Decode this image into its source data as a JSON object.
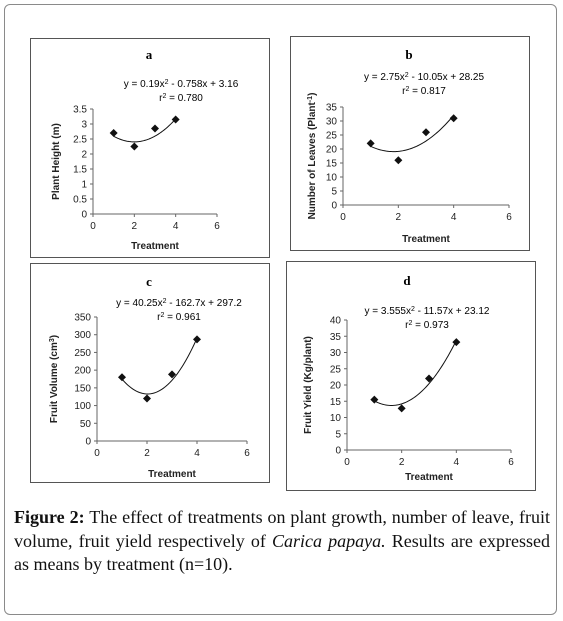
{
  "chart_data": [
    {
      "id": "a",
      "type": "scatter",
      "panel_label": "a",
      "equation": "y = 0.19x² - 0.758x + 3.16",
      "r2": "r² = 0.780",
      "xlabel": "Treatment",
      "ylabel": "Plant Height (m)",
      "xlim": [
        0,
        6
      ],
      "xticks": [
        0,
        2,
        4,
        6
      ],
      "ylim": [
        0,
        3.5
      ],
      "yticks": [
        0,
        0.5,
        1,
        1.5,
        2,
        2.5,
        3,
        3.5
      ],
      "points": [
        {
          "x": 1,
          "y": 2.7
        },
        {
          "x": 2,
          "y": 2.25
        },
        {
          "x": 3,
          "y": 2.85
        },
        {
          "x": 4,
          "y": 3.15
        }
      ],
      "fit": [
        0.19,
        -0.758,
        3.16
      ]
    },
    {
      "id": "b",
      "type": "scatter",
      "panel_label": "b",
      "equation": "y = 2.75x² - 10.05x + 28.25",
      "r2": "r² = 0.817",
      "xlabel": "Treatment",
      "ylabel": "Number of Leaves (Plant⁻¹)",
      "xlim": [
        0,
        6
      ],
      "xticks": [
        0,
        2,
        4,
        6
      ],
      "ylim": [
        0,
        35
      ],
      "yticks": [
        0,
        5,
        10,
        15,
        20,
        25,
        30,
        35
      ],
      "points": [
        {
          "x": 1,
          "y": 22
        },
        {
          "x": 2,
          "y": 16
        },
        {
          "x": 3,
          "y": 26
        },
        {
          "x": 4,
          "y": 31
        }
      ],
      "fit": [
        2.75,
        -10.05,
        28.25
      ]
    },
    {
      "id": "c",
      "type": "scatter",
      "panel_label": "c",
      "equation": "y = 40.25x² - 162.7x + 297.2",
      "r2": "r² = 0.961",
      "xlabel": "Treatment",
      "ylabel": "Fruit Volume (cm³)",
      "xlim": [
        0,
        6
      ],
      "xticks": [
        0,
        2,
        4,
        6
      ],
      "ylim": [
        0,
        350
      ],
      "yticks": [
        0,
        50,
        100,
        150,
        200,
        250,
        300,
        350
      ],
      "points": [
        {
          "x": 1,
          "y": 180
        },
        {
          "x": 2,
          "y": 120
        },
        {
          "x": 3,
          "y": 188
        },
        {
          "x": 4,
          "y": 287
        }
      ],
      "fit": [
        40.25,
        -162.7,
        297.2
      ]
    },
    {
      "id": "d",
      "type": "scatter",
      "panel_label": "d",
      "equation": "y = 3.555x² - 11.57x + 23.12",
      "r2": "r² = 0.973",
      "xlabel": "Treatment",
      "ylabel": "Fruit Yield (Kg/plant)",
      "xlim": [
        0,
        6
      ],
      "xticks": [
        0,
        2,
        4,
        6
      ],
      "ylim": [
        0,
        40
      ],
      "yticks": [
        0,
        5,
        10,
        15,
        20,
        25,
        30,
        35,
        40
      ],
      "points": [
        {
          "x": 1,
          "y": 15.5
        },
        {
          "x": 2,
          "y": 12.8
        },
        {
          "x": 3,
          "y": 22
        },
        {
          "x": 4,
          "y": 33.2
        }
      ],
      "fit": [
        3.555,
        -11.57,
        23.12
      ]
    }
  ],
  "caption": {
    "label": "Figure 2:",
    "text_1": " The effect of treatments on plant growth, number of leave, fruit volume, fruit yield respectively of ",
    "species": "Carica papaya.",
    "text_2": " Results are expressed as means by treatment (n=10)."
  }
}
